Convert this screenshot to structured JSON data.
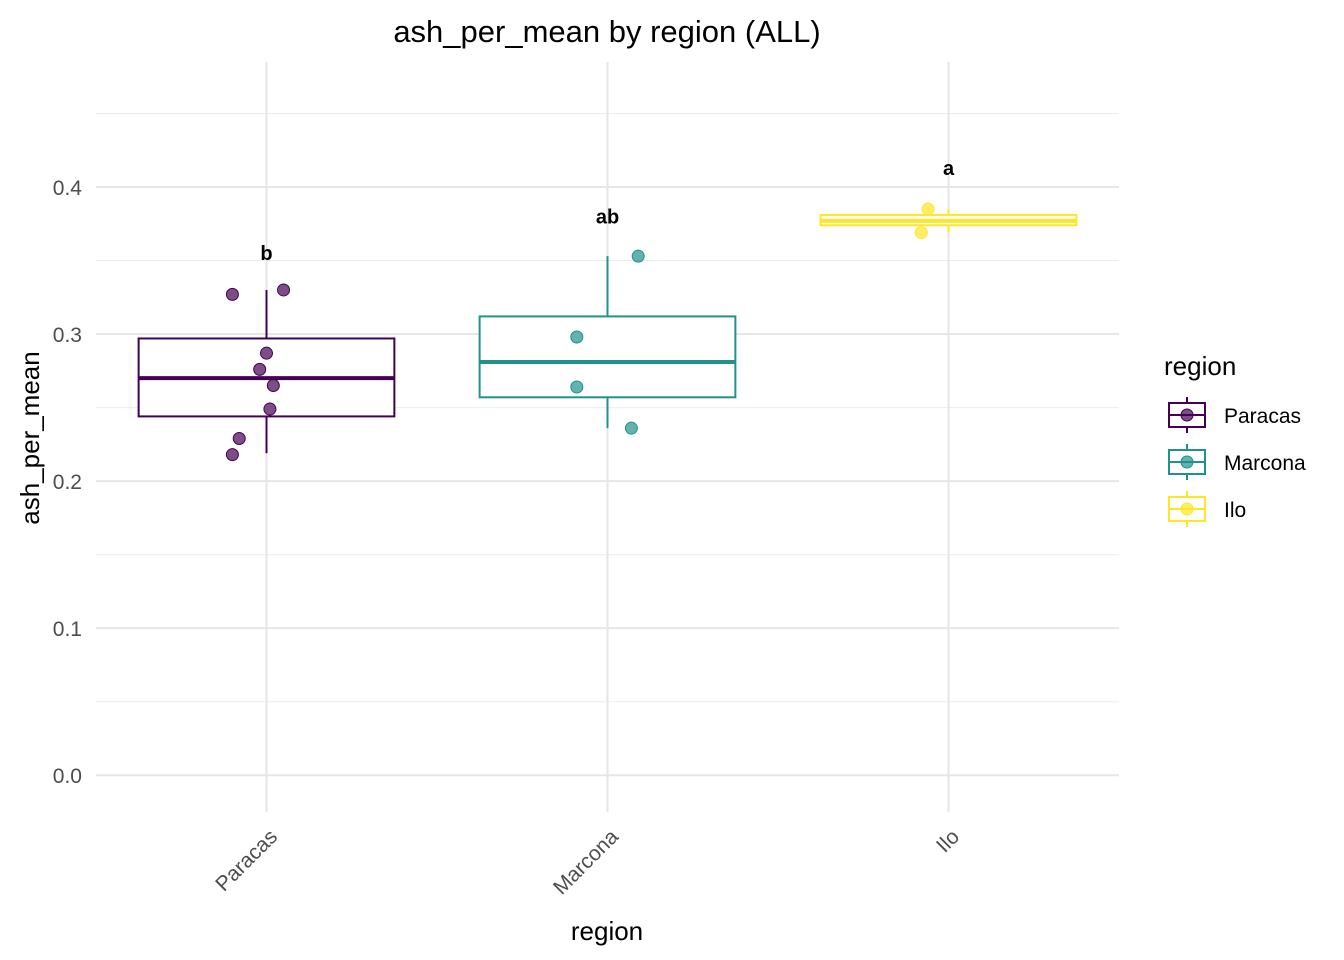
{
  "chart_data": {
    "type": "boxplot",
    "title": "ash_per_mean by region (ALL)",
    "xlabel": "region",
    "ylabel": "ash_per_mean",
    "ylim": [
      -0.025,
      0.485
    ],
    "yticks": [
      0.0,
      0.1,
      0.2,
      0.3,
      0.4
    ],
    "ytick_labels": [
      "0.0",
      "0.1",
      "0.2",
      "0.3",
      "0.4"
    ],
    "grid": true,
    "legend": {
      "title": "region",
      "position": "right"
    },
    "categories": [
      "Paracas",
      "Marcona",
      "Ilo"
    ],
    "series": [
      {
        "name": "Paracas",
        "color": "#440154",
        "box": {
          "lower_whisker": 0.219,
          "q1": 0.244,
          "median": 0.27,
          "q3": 0.297,
          "upper_whisker": 0.33
        },
        "points": [
          {
            "offset": -0.1,
            "value": 0.327
          },
          {
            "offset": 0.05,
            "value": 0.33
          },
          {
            "offset": 0.0,
            "value": 0.287
          },
          {
            "offset": -0.02,
            "value": 0.276
          },
          {
            "offset": 0.02,
            "value": 0.265
          },
          {
            "offset": 0.01,
            "value": 0.249
          },
          {
            "offset": -0.08,
            "value": 0.229
          },
          {
            "offset": -0.1,
            "value": 0.218
          }
        ],
        "letter": "b",
        "letter_y": 0.355
      },
      {
        "name": "Marcona",
        "color": "#21918c",
        "box": {
          "lower_whisker": 0.236,
          "q1": 0.257,
          "median": 0.281,
          "q3": 0.312,
          "upper_whisker": 0.353
        },
        "points": [
          {
            "offset": 0.09,
            "value": 0.353
          },
          {
            "offset": -0.09,
            "value": 0.298
          },
          {
            "offset": -0.09,
            "value": 0.264
          },
          {
            "offset": 0.07,
            "value": 0.236
          }
        ],
        "letter": "ab",
        "letter_y": 0.38
      },
      {
        "name": "Ilo",
        "color": "#fde725",
        "box": {
          "lower_whisker": 0.369,
          "q1": 0.374,
          "median": 0.377,
          "q3": 0.381,
          "upper_whisker": 0.385
        },
        "points": [
          {
            "offset": -0.06,
            "value": 0.385
          },
          {
            "offset": -0.08,
            "value": 0.369
          }
        ],
        "letter": "a",
        "letter_y": 0.413
      }
    ]
  }
}
